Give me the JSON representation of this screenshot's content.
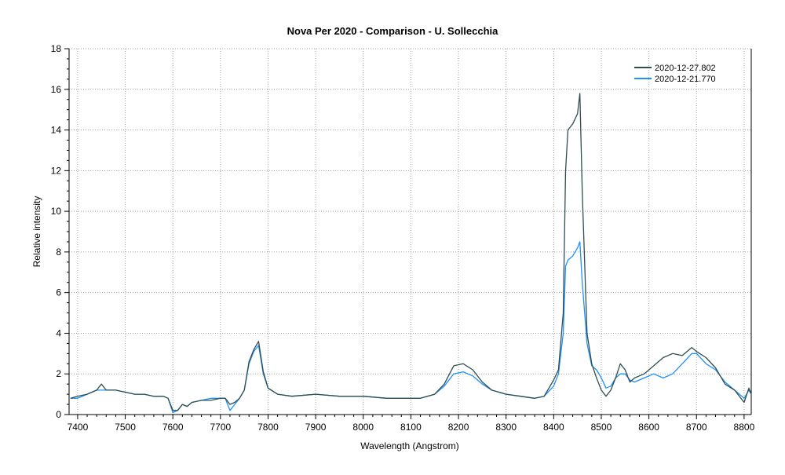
{
  "chart_data": {
    "type": "line",
    "title": "Nova Per 2020  - Comparison - U. Sollecchia",
    "xlabel": "Wavelength (Angstrom)",
    "ylabel": "Relative intensity",
    "xlim": [
      7382,
      8815
    ],
    "ylim": [
      0,
      18
    ],
    "xticks": [
      7400,
      7500,
      7600,
      7700,
      7800,
      7900,
      8000,
      8100,
      8200,
      8300,
      8400,
      8500,
      8600,
      8700,
      8800
    ],
    "yticks": [
      0,
      2,
      4,
      6,
      8,
      10,
      12,
      14,
      16,
      18
    ],
    "grid": true,
    "legend_position": "top-right",
    "series": [
      {
        "name": "2020-12-27.802",
        "color": "#2f4f4f",
        "x": [
          7385,
          7400,
          7420,
          7440,
          7450,
          7460,
          7480,
          7500,
          7520,
          7540,
          7560,
          7580,
          7590,
          7600,
          7610,
          7620,
          7630,
          7640,
          7660,
          7680,
          7700,
          7710,
          7720,
          7730,
          7740,
          7750,
          7760,
          7770,
          7780,
          7790,
          7800,
          7820,
          7850,
          7900,
          7950,
          8000,
          8050,
          8100,
          8120,
          8150,
          8170,
          8190,
          8210,
          8230,
          8250,
          8270,
          8300,
          8330,
          8360,
          8380,
          8400,
          8410,
          8420,
          8425,
          8430,
          8440,
          8450,
          8455,
          8460,
          8470,
          8480,
          8490,
          8500,
          8510,
          8520,
          8530,
          8540,
          8550,
          8560,
          8570,
          8590,
          8610,
          8630,
          8650,
          8670,
          8690,
          8700,
          8720,
          8740,
          8760,
          8780,
          8800,
          8810,
          8815
        ],
        "y": [
          0.8,
          0.9,
          1.0,
          1.2,
          1.5,
          1.2,
          1.2,
          1.1,
          1.0,
          1.0,
          0.9,
          0.9,
          0.8,
          0.2,
          0.2,
          0.5,
          0.4,
          0.6,
          0.7,
          0.7,
          0.8,
          0.8,
          0.5,
          0.6,
          0.8,
          1.2,
          2.6,
          3.2,
          3.6,
          2.1,
          1.3,
          1.0,
          0.9,
          1.0,
          0.9,
          0.9,
          0.8,
          0.8,
          0.8,
          1.0,
          1.5,
          2.4,
          2.5,
          2.2,
          1.6,
          1.2,
          1.0,
          0.9,
          0.8,
          0.9,
          1.7,
          2.2,
          5.0,
          12.0,
          14.0,
          14.3,
          14.8,
          15.8,
          11.0,
          4.0,
          2.5,
          1.8,
          1.2,
          0.9,
          1.2,
          1.8,
          2.5,
          2.2,
          1.6,
          1.8,
          2.0,
          2.4,
          2.8,
          3.0,
          2.9,
          3.3,
          3.1,
          2.8,
          2.3,
          1.5,
          1.2,
          0.6,
          1.3,
          1.0
        ]
      },
      {
        "name": "2020-12-21.770",
        "color": "#1e90ff",
        "x": [
          7385,
          7400,
          7420,
          7440,
          7450,
          7460,
          7480,
          7500,
          7520,
          7540,
          7560,
          7580,
          7590,
          7600,
          7610,
          7620,
          7630,
          7640,
          7660,
          7680,
          7700,
          7710,
          7720,
          7730,
          7740,
          7750,
          7760,
          7770,
          7780,
          7790,
          7800,
          7820,
          7850,
          7900,
          7950,
          8000,
          8050,
          8100,
          8120,
          8150,
          8170,
          8190,
          8210,
          8230,
          8250,
          8270,
          8300,
          8330,
          8360,
          8380,
          8400,
          8410,
          8420,
          8425,
          8430,
          8440,
          8450,
          8455,
          8460,
          8470,
          8480,
          8490,
          8500,
          8510,
          8520,
          8530,
          8540,
          8550,
          8560,
          8570,
          8590,
          8610,
          8630,
          8650,
          8670,
          8690,
          8700,
          8720,
          8740,
          8760,
          8780,
          8800,
          8810,
          8815
        ],
        "y": [
          0.8,
          0.8,
          1.0,
          1.2,
          1.2,
          1.2,
          1.2,
          1.1,
          1.0,
          1.0,
          0.9,
          0.9,
          0.8,
          0.1,
          0.2,
          0.5,
          0.4,
          0.6,
          0.7,
          0.8,
          0.8,
          0.8,
          0.2,
          0.5,
          0.8,
          1.2,
          2.5,
          3.1,
          3.4,
          2.0,
          1.3,
          1.0,
          0.9,
          1.0,
          0.9,
          0.9,
          0.8,
          0.8,
          0.8,
          1.0,
          1.4,
          2.0,
          2.1,
          1.9,
          1.5,
          1.2,
          1.0,
          0.9,
          0.8,
          0.9,
          1.4,
          2.0,
          4.0,
          7.3,
          7.6,
          7.8,
          8.2,
          8.5,
          6.5,
          3.5,
          2.4,
          2.2,
          1.8,
          1.3,
          1.4,
          1.8,
          2.0,
          2.0,
          1.7,
          1.6,
          1.8,
          2.0,
          1.8,
          2.0,
          2.5,
          3.0,
          3.0,
          2.5,
          2.2,
          1.6,
          1.2,
          0.8,
          1.2,
          1.0
        ]
      }
    ]
  }
}
